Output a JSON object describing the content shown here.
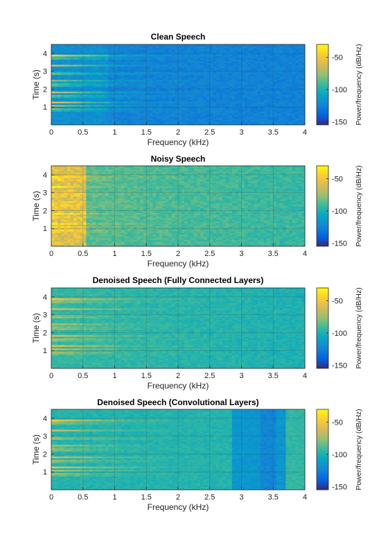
{
  "figure_background": "#ffffff",
  "chart_data": [
    {
      "type": "heatmap",
      "title": "Clean Speech",
      "xlabel": "Frequency (kHz)",
      "ylabel": "Time (s)",
      "xlim": [
        0,
        4
      ],
      "ylim": [
        0,
        4.5
      ],
      "xticks": [
        "0",
        "0.5",
        "1",
        "1.5",
        "2",
        "2.5",
        "3",
        "3.5",
        "4"
      ],
      "yticks": [
        "1",
        "2",
        "3",
        "4"
      ],
      "grid": true,
      "colorbar": {
        "label": "Power/frequency (dB/Hz)",
        "ticks": [
          "-50",
          "-100",
          "-150"
        ],
        "range": [
          -155,
          -30
        ],
        "colormap": "parula"
      },
      "profile": "clean"
    },
    {
      "type": "heatmap",
      "title": "Noisy Speech",
      "xlabel": "Frequency (kHz)",
      "ylabel": "Time (s)",
      "xlim": [
        0,
        4
      ],
      "ylim": [
        0,
        4.5
      ],
      "xticks": [
        "0",
        "0.5",
        "1",
        "1.5",
        "2",
        "2.5",
        "3",
        "3.5",
        "4"
      ],
      "yticks": [
        "1",
        "2",
        "3",
        "4"
      ],
      "grid": true,
      "colorbar": {
        "label": "Power/frequency (dB/Hz)",
        "ticks": [
          "-50",
          "-100",
          "-150"
        ],
        "range": [
          -155,
          -30
        ],
        "colormap": "parula"
      },
      "profile": "noisy"
    },
    {
      "type": "heatmap",
      "title": "Denoised Speech (Fully Connected Layers)",
      "xlabel": "Frequency (kHz)",
      "ylabel": "Time (s)",
      "xlim": [
        0,
        4
      ],
      "ylim": [
        0,
        4.5
      ],
      "xticks": [
        "0",
        "0.5",
        "1",
        "1.5",
        "2",
        "2.5",
        "3",
        "3.5",
        "4"
      ],
      "yticks": [
        "1",
        "2",
        "3",
        "4"
      ],
      "grid": true,
      "colorbar": {
        "label": "Power/frequency (dB/Hz)",
        "ticks": [
          "-50",
          "-100",
          "-150"
        ],
        "range": [
          -155,
          -30
        ],
        "colormap": "parula"
      },
      "profile": "fc"
    },
    {
      "type": "heatmap",
      "title": "Denoised Speech (Convolutional Layers)",
      "xlabel": "Frequency (kHz)",
      "ylabel": "Time (s)",
      "xlim": [
        0,
        4
      ],
      "ylim": [
        0,
        4.5
      ],
      "xticks": [
        "0",
        "0.5",
        "1",
        "1.5",
        "2",
        "2.5",
        "3",
        "3.5",
        "4"
      ],
      "yticks": [
        "1",
        "2",
        "3",
        "4"
      ],
      "grid": true,
      "colorbar": {
        "label": "Power/frequency (dB/Hz)",
        "ticks": [
          "-50",
          "-100",
          "-150"
        ],
        "range": [
          -155,
          -30
        ],
        "colormap": "parula"
      },
      "profile": "conv"
    }
  ]
}
